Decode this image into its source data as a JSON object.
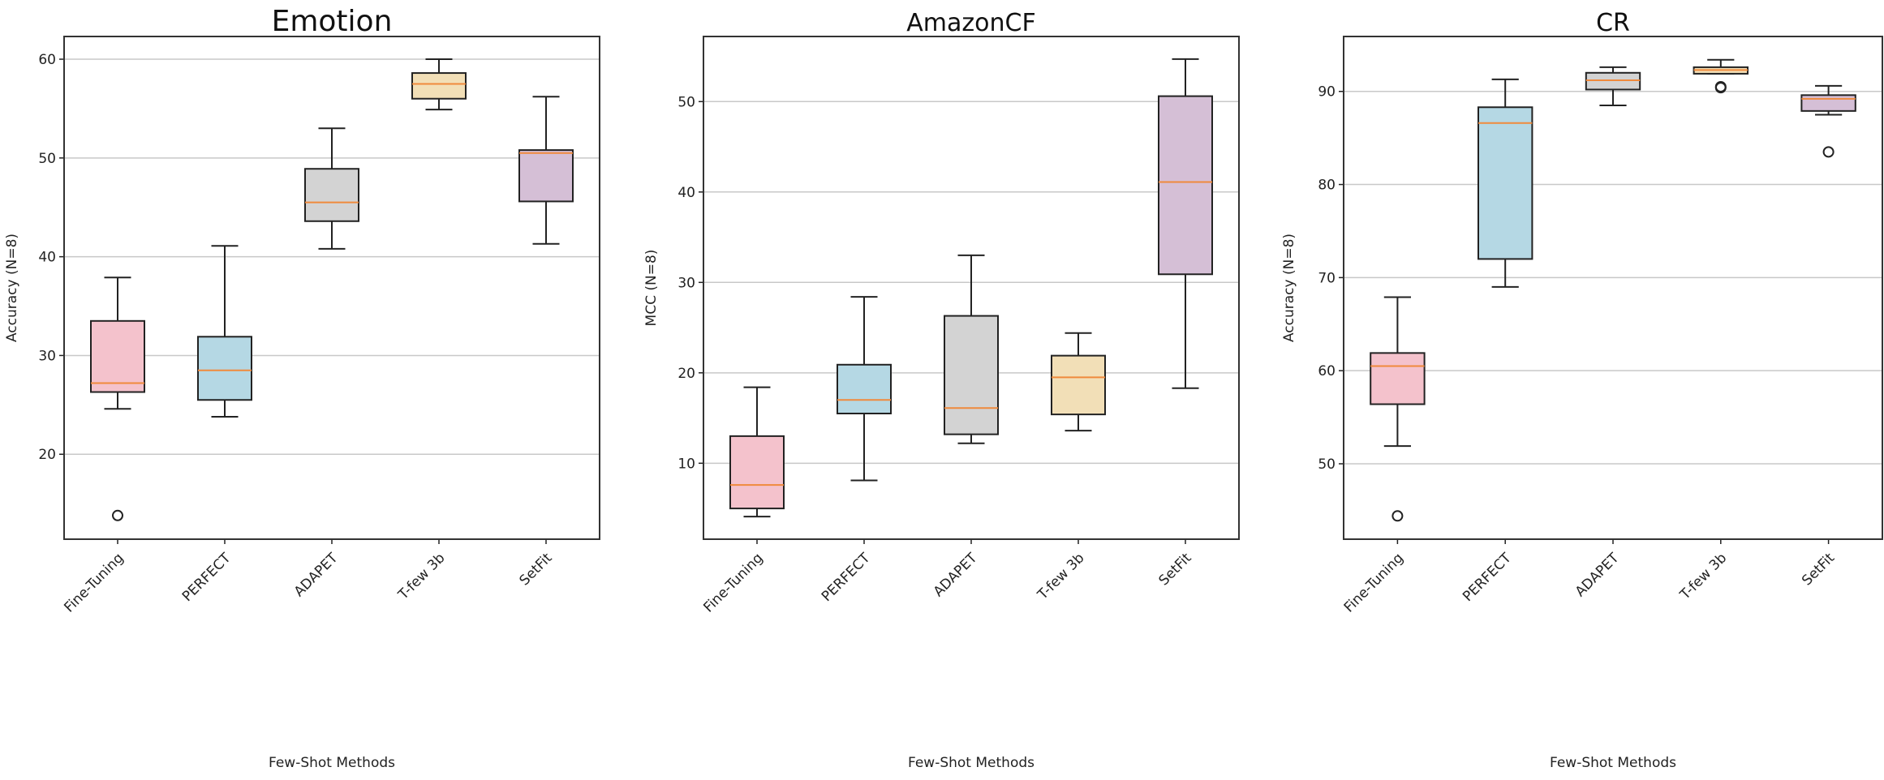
{
  "chart_data": [
    {
      "type": "box",
      "title": "Emotion",
      "xlabel": "Few-Shot Methods",
      "ylabel": "Accuracy (N=8)",
      "ylim": [
        11.4,
        62.3
      ],
      "yticks": [
        20,
        30,
        40,
        50,
        60
      ],
      "grid": "y",
      "categories": [
        "Fine-Tuning",
        "PERFECT",
        "ADAPET",
        "T-few 3b",
        "SetFit"
      ],
      "boxes": [
        {
          "whislo": 24.6,
          "q1": 26.3,
          "med": 27.2,
          "q3": 33.5,
          "whishi": 37.9,
          "fliers": [
            13.8
          ]
        },
        {
          "whislo": 23.8,
          "q1": 25.5,
          "med": 28.5,
          "q3": 31.9,
          "whishi": 41.1,
          "fliers": []
        },
        {
          "whislo": 40.8,
          "q1": 43.6,
          "med": 45.5,
          "q3": 48.9,
          "whishi": 53.0,
          "fliers": []
        },
        {
          "whislo": 54.9,
          "q1": 56.0,
          "med": 57.5,
          "q3": 58.6,
          "whishi": 60.0,
          "fliers": []
        },
        {
          "whislo": 41.3,
          "q1": 45.6,
          "med": 50.5,
          "q3": 50.8,
          "whishi": 56.2,
          "fliers": []
        }
      ]
    },
    {
      "type": "box",
      "title": "AmazonCF",
      "xlabel": "Few-Shot Methods",
      "ylabel": "MCC (N=8)",
      "ylim": [
        1.6,
        57.2
      ],
      "yticks": [
        10,
        20,
        30,
        40,
        50
      ],
      "grid": "y",
      "categories": [
        "Fine-Tuning",
        "PERFECT",
        "ADAPET",
        "T-few 3b",
        "SetFit"
      ],
      "boxes": [
        {
          "whislo": 4.1,
          "q1": 5.0,
          "med": 7.6,
          "q3": 13.0,
          "whishi": 18.4,
          "fliers": []
        },
        {
          "whislo": 8.1,
          "q1": 15.5,
          "med": 17.0,
          "q3": 20.9,
          "whishi": 28.4,
          "fliers": []
        },
        {
          "whislo": 12.2,
          "q1": 13.2,
          "med": 16.1,
          "q3": 26.3,
          "whishi": 33.0,
          "fliers": []
        },
        {
          "whislo": 13.6,
          "q1": 15.4,
          "med": 19.5,
          "q3": 21.9,
          "whishi": 24.4,
          "fliers": []
        },
        {
          "whislo": 18.3,
          "q1": 30.9,
          "med": 41.1,
          "q3": 50.6,
          "whishi": 54.7,
          "fliers": []
        }
      ]
    },
    {
      "type": "box",
      "title": "CR",
      "xlabel": "Few-Shot Methods",
      "ylabel": "Accuracy (N=8)",
      "ylim": [
        41.9,
        95.9
      ],
      "yticks": [
        50,
        60,
        70,
        80,
        90
      ],
      "grid": "y",
      "categories": [
        "Fine-Tuning",
        "PERFECT",
        "ADAPET",
        "T-few 3b",
        "SetFit"
      ],
      "boxes": [
        {
          "whislo": 51.9,
          "q1": 56.4,
          "med": 60.5,
          "q3": 61.9,
          "whishi": 67.9,
          "fliers": [
            44.4
          ]
        },
        {
          "whislo": 69.0,
          "q1": 72.0,
          "med": 86.6,
          "q3": 88.3,
          "whishi": 91.3,
          "fliers": []
        },
        {
          "whislo": 88.5,
          "q1": 90.2,
          "med": 91.2,
          "q3": 92.0,
          "whishi": 92.6,
          "fliers": []
        },
        {
          "whislo": 91.9,
          "q1": 91.9,
          "med": 92.3,
          "q3": 92.6,
          "whishi": 93.4,
          "fliers": [
            90.4,
            90.5
          ]
        },
        {
          "whislo": 87.5,
          "q1": 87.9,
          "med": 89.2,
          "q3": 89.6,
          "whishi": 90.6,
          "fliers": [
            83.5
          ]
        }
      ]
    }
  ],
  "colors": {
    "box_fills": [
      "#f4c2cc",
      "#b5d8e4",
      "#d3d3d3",
      "#f2dfb7",
      "#d5bfd6"
    ],
    "median": "#f08a3c",
    "grid": "#c8c8c8",
    "edge": "#222222"
  }
}
